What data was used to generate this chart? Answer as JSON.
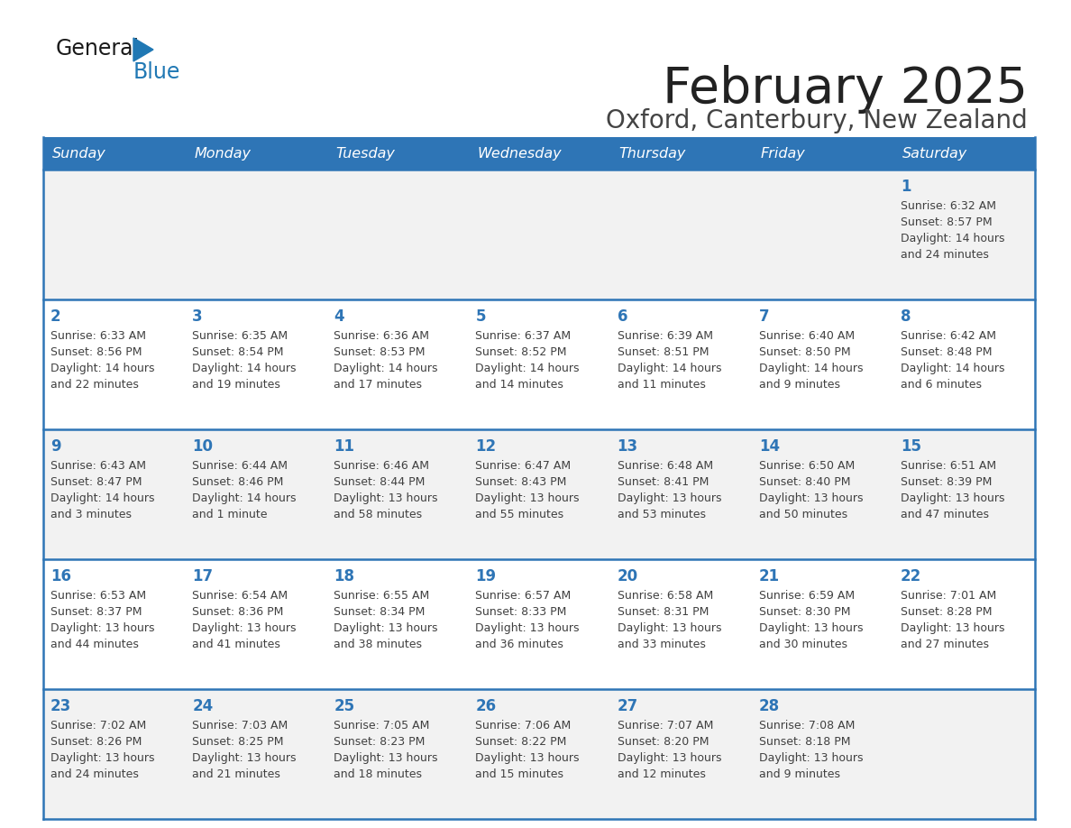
{
  "title": "February 2025",
  "subtitle": "Oxford, Canterbury, New Zealand",
  "days_of_week": [
    "Sunday",
    "Monday",
    "Tuesday",
    "Wednesday",
    "Thursday",
    "Friday",
    "Saturday"
  ],
  "header_bg": "#2E75B6",
  "header_text": "#FFFFFF",
  "row_bg_light": "#F2F2F2",
  "row_bg_white": "#FFFFFF",
  "cell_border": "#2E75B6",
  "day_num_color": "#2E75B6",
  "text_color": "#404040",
  "title_color": "#222222",
  "subtitle_color": "#444444",
  "logo_general_color": "#1a1a1a",
  "logo_blue_color": "#2078B4",
  "calendar_data": [
    [
      null,
      null,
      null,
      null,
      null,
      null,
      {
        "day": 1,
        "sunrise": "6:32 AM",
        "sunset": "8:57 PM",
        "daylight": "14 hours and 24 minutes"
      }
    ],
    [
      {
        "day": 2,
        "sunrise": "6:33 AM",
        "sunset": "8:56 PM",
        "daylight": "14 hours and 22 minutes"
      },
      {
        "day": 3,
        "sunrise": "6:35 AM",
        "sunset": "8:54 PM",
        "daylight": "14 hours and 19 minutes"
      },
      {
        "day": 4,
        "sunrise": "6:36 AM",
        "sunset": "8:53 PM",
        "daylight": "14 hours and 17 minutes"
      },
      {
        "day": 5,
        "sunrise": "6:37 AM",
        "sunset": "8:52 PM",
        "daylight": "14 hours and 14 minutes"
      },
      {
        "day": 6,
        "sunrise": "6:39 AM",
        "sunset": "8:51 PM",
        "daylight": "14 hours and 11 minutes"
      },
      {
        "day": 7,
        "sunrise": "6:40 AM",
        "sunset": "8:50 PM",
        "daylight": "14 hours and 9 minutes"
      },
      {
        "day": 8,
        "sunrise": "6:42 AM",
        "sunset": "8:48 PM",
        "daylight": "14 hours and 6 minutes"
      }
    ],
    [
      {
        "day": 9,
        "sunrise": "6:43 AM",
        "sunset": "8:47 PM",
        "daylight": "14 hours and 3 minutes"
      },
      {
        "day": 10,
        "sunrise": "6:44 AM",
        "sunset": "8:46 PM",
        "daylight": "14 hours and 1 minute"
      },
      {
        "day": 11,
        "sunrise": "6:46 AM",
        "sunset": "8:44 PM",
        "daylight": "13 hours and 58 minutes"
      },
      {
        "day": 12,
        "sunrise": "6:47 AM",
        "sunset": "8:43 PM",
        "daylight": "13 hours and 55 minutes"
      },
      {
        "day": 13,
        "sunrise": "6:48 AM",
        "sunset": "8:41 PM",
        "daylight": "13 hours and 53 minutes"
      },
      {
        "day": 14,
        "sunrise": "6:50 AM",
        "sunset": "8:40 PM",
        "daylight": "13 hours and 50 minutes"
      },
      {
        "day": 15,
        "sunrise": "6:51 AM",
        "sunset": "8:39 PM",
        "daylight": "13 hours and 47 minutes"
      }
    ],
    [
      {
        "day": 16,
        "sunrise": "6:53 AM",
        "sunset": "8:37 PM",
        "daylight": "13 hours and 44 minutes"
      },
      {
        "day": 17,
        "sunrise": "6:54 AM",
        "sunset": "8:36 PM",
        "daylight": "13 hours and 41 minutes"
      },
      {
        "day": 18,
        "sunrise": "6:55 AM",
        "sunset": "8:34 PM",
        "daylight": "13 hours and 38 minutes"
      },
      {
        "day": 19,
        "sunrise": "6:57 AM",
        "sunset": "8:33 PM",
        "daylight": "13 hours and 36 minutes"
      },
      {
        "day": 20,
        "sunrise": "6:58 AM",
        "sunset": "8:31 PM",
        "daylight": "13 hours and 33 minutes"
      },
      {
        "day": 21,
        "sunrise": "6:59 AM",
        "sunset": "8:30 PM",
        "daylight": "13 hours and 30 minutes"
      },
      {
        "day": 22,
        "sunrise": "7:01 AM",
        "sunset": "8:28 PM",
        "daylight": "13 hours and 27 minutes"
      }
    ],
    [
      {
        "day": 23,
        "sunrise": "7:02 AM",
        "sunset": "8:26 PM",
        "daylight": "13 hours and 24 minutes"
      },
      {
        "day": 24,
        "sunrise": "7:03 AM",
        "sunset": "8:25 PM",
        "daylight": "13 hours and 21 minutes"
      },
      {
        "day": 25,
        "sunrise": "7:05 AM",
        "sunset": "8:23 PM",
        "daylight": "13 hours and 18 minutes"
      },
      {
        "day": 26,
        "sunrise": "7:06 AM",
        "sunset": "8:22 PM",
        "daylight": "13 hours and 15 minutes"
      },
      {
        "day": 27,
        "sunrise": "7:07 AM",
        "sunset": "8:20 PM",
        "daylight": "13 hours and 12 minutes"
      },
      {
        "day": 28,
        "sunrise": "7:08 AM",
        "sunset": "8:18 PM",
        "daylight": "13 hours and 9 minutes"
      },
      null
    ]
  ]
}
